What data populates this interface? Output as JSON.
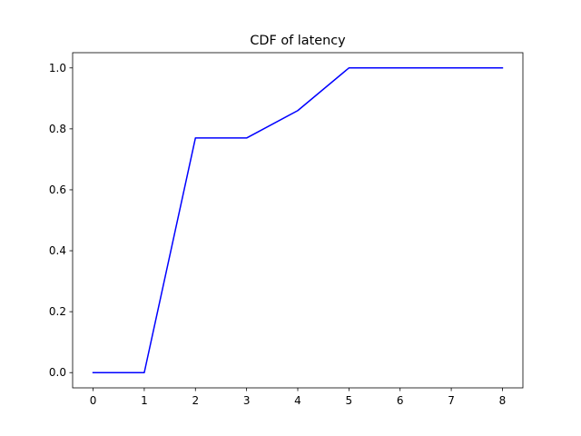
{
  "chart_data": {
    "type": "line",
    "title": "CDF of latency",
    "xlabel": "",
    "ylabel": "",
    "xlim": [
      -0.4,
      8.4
    ],
    "ylim": [
      -0.05,
      1.05
    ],
    "xticks": [
      0,
      1,
      2,
      3,
      4,
      5,
      6,
      7,
      8
    ],
    "yticks": [
      0.0,
      0.2,
      0.4,
      0.6,
      0.8,
      1.0
    ],
    "ytick_labels": [
      "0.0",
      "0.2",
      "0.4",
      "0.6",
      "0.8",
      "1.0"
    ],
    "grid": false,
    "legend": false,
    "series": [
      {
        "color": "#0000ff",
        "x": [
          0,
          1,
          2,
          3,
          4,
          5,
          6,
          7,
          8
        ],
        "y": [
          0.0,
          0.0,
          0.77,
          0.77,
          0.86,
          1.0,
          1.0,
          1.0,
          1.0
        ]
      }
    ]
  }
}
